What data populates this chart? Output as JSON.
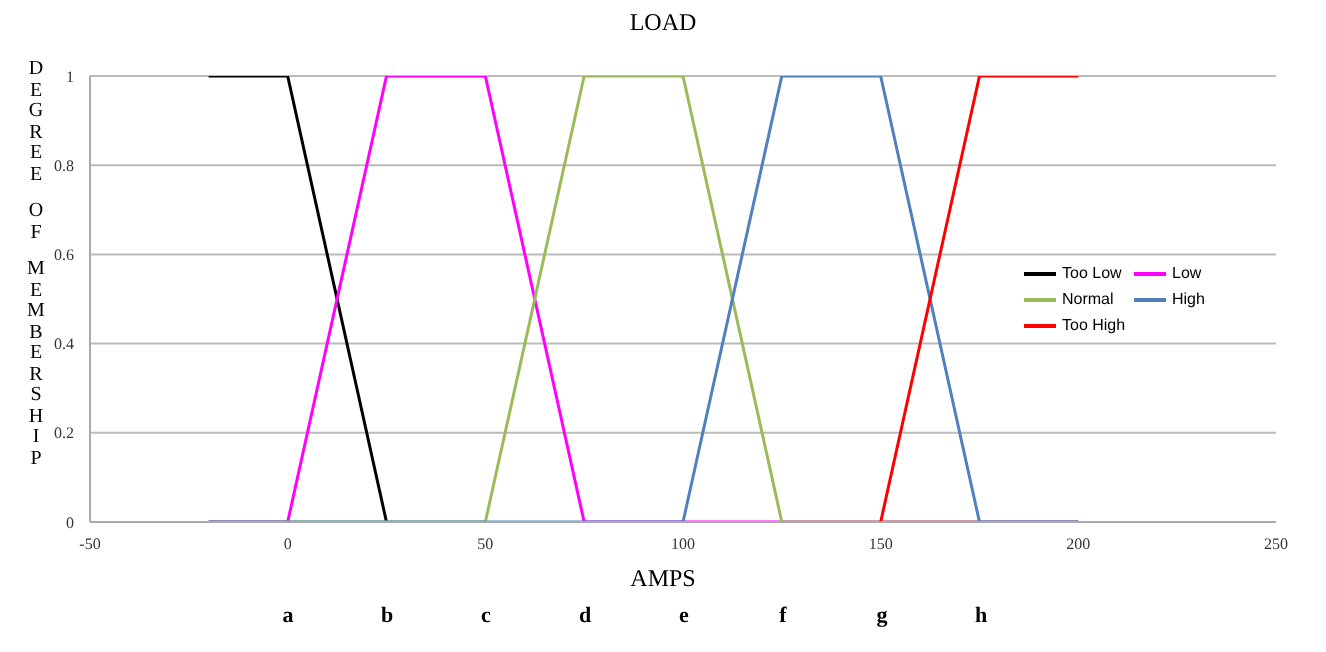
{
  "chart_data": {
    "type": "line",
    "title": "LOAD",
    "xlabel": "AMPS",
    "ylabel": "DEGREE OF MEMBERSHIP",
    "xlim": [
      -50,
      250
    ],
    "xticks": [
      -50,
      0,
      50,
      100,
      150,
      200,
      250
    ],
    "annotations": [
      "a",
      "b",
      "c",
      "d",
      "e",
      "f",
      "g",
      "h"
    ],
    "ylim": [
      0,
      1
    ],
    "yticks": [
      0,
      0.2,
      0.4,
      0.6,
      0.8,
      1
    ],
    "grid": "y",
    "legend": "right",
    "marker": "none",
    "line_style": "solid",
    "series": [
      {
        "name": "Too Low",
        "color": "#000000",
        "x": [
          -20,
          0,
          25
        ],
        "values": [
          1,
          1,
          0
        ]
      },
      {
        "name": "Low",
        "color": "#ff00ff",
        "x": [
          -20,
          0,
          25,
          50,
          75,
          200
        ],
        "values": [
          0,
          0,
          1,
          1,
          0,
          0
        ]
      },
      {
        "name": "Normal",
        "color": "#9bbb59",
        "x": [
          -20,
          50,
          75,
          100,
          125,
          200
        ],
        "values": [
          0,
          0,
          1,
          1,
          0,
          0
        ]
      },
      {
        "name": "High",
        "color": "#4f81bd",
        "x": [
          -20,
          100,
          125,
          150,
          175,
          200
        ],
        "values": [
          0,
          0,
          1,
          1,
          0,
          0
        ]
      },
      {
        "name": "Too High",
        "color": "#ff0000",
        "x": [
          150,
          175,
          200
        ],
        "values": [
          0,
          1,
          1
        ]
      }
    ]
  }
}
